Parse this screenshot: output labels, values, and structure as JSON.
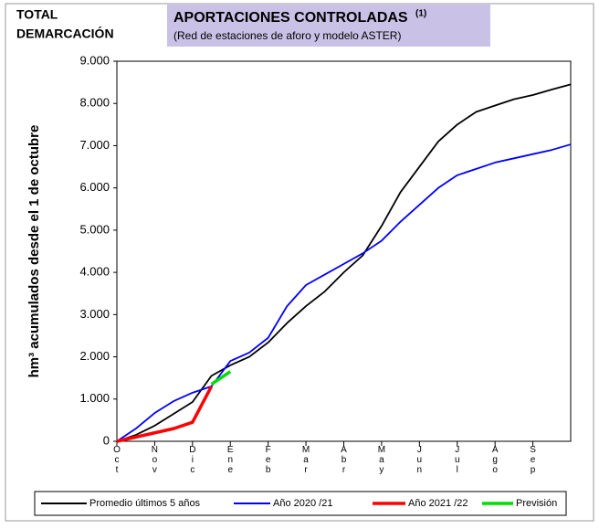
{
  "chart_data": {
    "type": "line",
    "corner_label": [
      "TOTAL",
      "DEMARCACIÓN"
    ],
    "title": "APORTACIONES CONTROLADAS",
    "title_note": "(1)",
    "subtitle": "(Red de estaciones de aforo y modelo ASTER)",
    "y_label": "hm³ acumulados desde el 1 de octubre",
    "categories": [
      "Oct",
      null,
      "Nov",
      null,
      "Dic",
      null,
      "Ene",
      null,
      "Feb",
      null,
      "Mar",
      null,
      "Abr",
      null,
      "May",
      null,
      "Jun",
      null,
      "Jul",
      null,
      "Ago",
      null,
      "Sep",
      null,
      null
    ],
    "series": [
      {
        "name": "Promedio últimos 5 años",
        "color": "#000000",
        "values": [
          0,
          150,
          370,
          650,
          930,
          1550,
          1800,
          2000,
          2340,
          2800,
          3200,
          3550,
          4000,
          4400,
          5100,
          5900,
          6500,
          7100,
          7500,
          7800,
          7950,
          8100,
          8200,
          8330,
          8450
        ]
      },
      {
        "name": "Año 2020 /21",
        "color": "#0000ff",
        "values": [
          0,
          300,
          670,
          950,
          1150,
          1300,
          1900,
          2100,
          2450,
          3200,
          3700,
          3950,
          4200,
          4450,
          4750,
          5200,
          5600,
          6000,
          6300,
          6450,
          6600,
          6700,
          6800,
          6900,
          7030
        ]
      },
      {
        "name": "Año 2021 /22",
        "color": "#ff0000",
        "values": [
          0,
          100,
          200,
          300,
          450,
          1300,
          null,
          null,
          null,
          null,
          null,
          null,
          null,
          null,
          null,
          null,
          null,
          null,
          null,
          null,
          null,
          null,
          null,
          null,
          null
        ]
      },
      {
        "name": "Previsión",
        "color": "#00dd00",
        "values": [
          null,
          null,
          null,
          null,
          null,
          1350,
          1650,
          null,
          null,
          null,
          null,
          null,
          null,
          null,
          null,
          null,
          null,
          null,
          null,
          null,
          null,
          null,
          null,
          null,
          null
        ]
      }
    ],
    "ylim": [
      0,
      9000
    ],
    "yticks": [
      0,
      {
        "value": 1000,
        "label": "1.000"
      },
      {
        "value": 2000,
        "label": "2.000"
      },
      {
        "value": 3000,
        "label": "3.000"
      },
      {
        "value": 4000,
        "label": "4.000"
      },
      {
        "value": 5000,
        "label": "5.000"
      },
      {
        "value": 6000,
        "label": "6.000"
      },
      {
        "value": 7000,
        "label": "7.000"
      },
      {
        "value": 8000,
        "label": "8.000"
      },
      {
        "value": 9000,
        "label": "9.000"
      }
    ],
    "grid": false
  }
}
